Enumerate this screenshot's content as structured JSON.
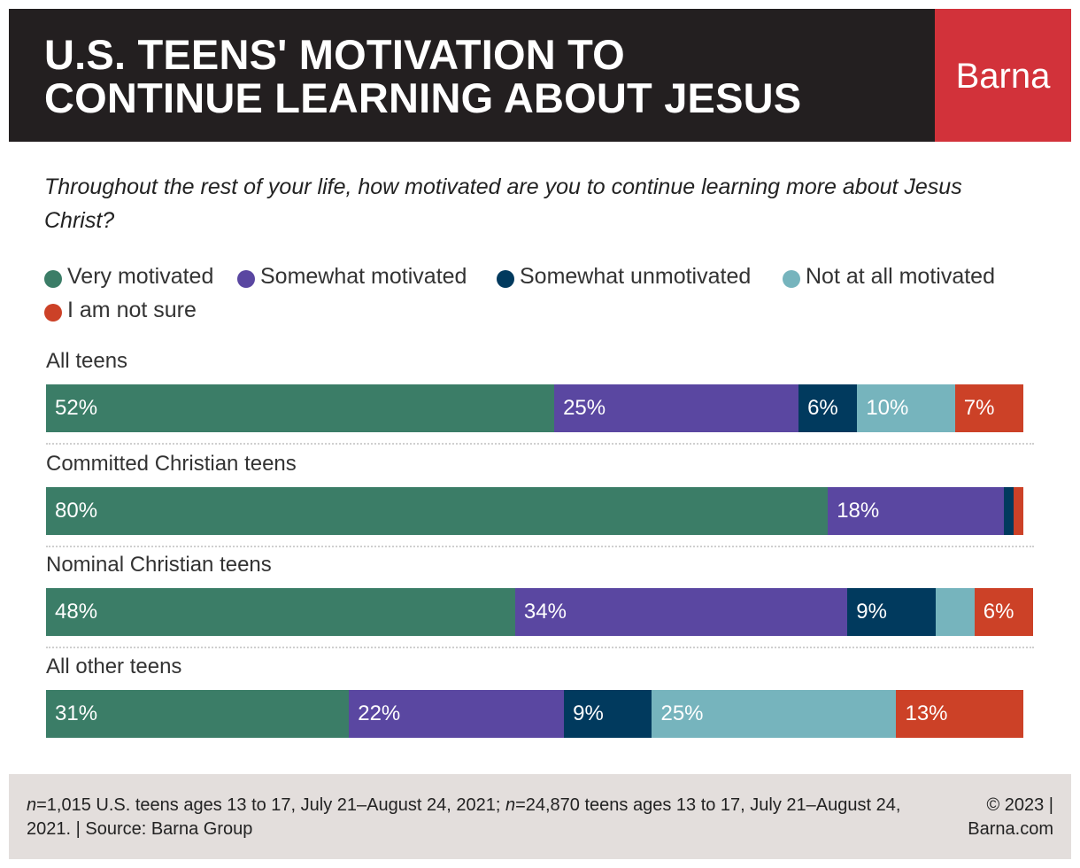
{
  "header": {
    "title_line1": "U.S. TEENS' MOTIVATION TO",
    "title_line2": "CONTINUE LEARNING ABOUT JESUS",
    "logo": "Barna"
  },
  "question": "Throughout the rest of your life, how motivated are you to continue learning more about Jesus Christ?",
  "colors": {
    "header_bg": "#231f20",
    "logo_bg": "#d2323a",
    "footer_bg": "#e3dedc"
  },
  "chart_data": {
    "type": "bar",
    "orientation": "horizontal",
    "stacked": true,
    "title": "U.S. TEENS' MOTIVATION TO CONTINUE LEARNING ABOUT JESUS",
    "xlim": [
      0,
      100
    ],
    "legend_placement": "top",
    "categories": [
      "All teens",
      "Committed Christian teens",
      "Nominal Christian teens",
      "All other teens"
    ],
    "series": [
      {
        "name": "Very motivated",
        "color": "#3b7d67",
        "values": [
          52,
          80,
          48,
          31
        ],
        "labels": [
          "52%",
          "80%",
          "48%",
          "31%"
        ]
      },
      {
        "name": "Somewhat motivated",
        "color": "#5a47a1",
        "values": [
          25,
          18,
          34,
          22
        ],
        "labels": [
          "25%",
          "18%",
          "34%",
          "22%"
        ]
      },
      {
        "name": "Somewhat unmotivated",
        "color": "#013a5e",
        "values": [
          6,
          1,
          9,
          9
        ],
        "labels": [
          "6%",
          "",
          "9%",
          "9%"
        ]
      },
      {
        "name": "Not at all motivated",
        "color": "#76b4bd",
        "values": [
          10,
          0,
          4,
          25
        ],
        "labels": [
          "10%",
          "",
          "",
          "25%"
        ]
      },
      {
        "name": "I am not sure",
        "color": "#cc4127",
        "values": [
          7,
          1,
          6,
          13
        ],
        "labels": [
          "7%",
          "",
          "6%",
          "13%"
        ]
      }
    ]
  },
  "footer": {
    "n1_label": "n",
    "n1_text": "=1,015 U.S. teens ages 13 to 17, July 21–August 24, 2021; ",
    "n2_label": "n",
    "n2_text": "=24,870 teens ages 13 to 17, July 21–August 24, 2021. | Source: Barna Group",
    "credit_line1": "© 2023 |",
    "credit_line2": "Barna.com"
  }
}
